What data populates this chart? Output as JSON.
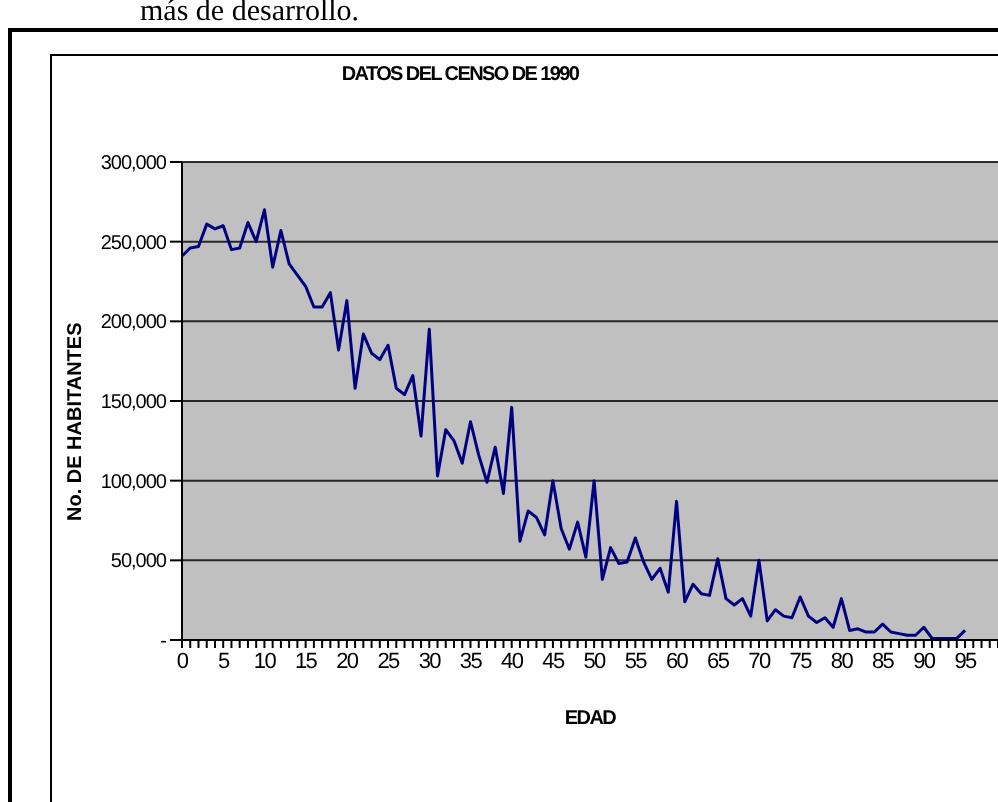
{
  "chart_data": {
    "type": "line",
    "title": "DATOS DEL CENSO DE 1990",
    "xlabel": "EDAD",
    "ylabel": "No. DE HABITANTES",
    "annotations": [
      "más de desarrollo."
    ],
    "categories": [
      "0",
      null,
      null,
      null,
      null,
      "5",
      null,
      null,
      null,
      null,
      "10",
      null,
      null,
      null,
      null,
      "15",
      null,
      null,
      null,
      null,
      "20",
      null,
      null,
      null,
      null,
      "25",
      null,
      null,
      null,
      null,
      "30",
      null,
      null,
      null,
      null,
      "35",
      null,
      null,
      null,
      null,
      "40",
      null,
      null,
      null,
      null,
      "45",
      null,
      null,
      null,
      null,
      "50",
      null,
      null,
      null,
      null,
      "55",
      null,
      null,
      null,
      null,
      "60",
      null,
      null,
      null,
      null,
      "65",
      null,
      null,
      null,
      null,
      "70",
      null,
      null,
      null,
      null,
      "75",
      null,
      null,
      null,
      null,
      "80",
      null,
      null,
      null,
      null,
      "85",
      null,
      null,
      null,
      null,
      "90",
      null,
      null,
      null,
      null,
      "95",
      null,
      null,
      null,
      null
    ],
    "series": [
      {
        "color": "#000080",
        "values": [
          241000,
          246000,
          247000,
          261000,
          258000,
          260000,
          245000,
          246000,
          262000,
          250000,
          270000,
          234000,
          257000,
          236000,
          229000,
          222000,
          209000,
          209000,
          218000,
          182000,
          213000,
          158000,
          192000,
          180000,
          176000,
          185000,
          158000,
          154000,
          166000,
          128000,
          195000,
          103000,
          132000,
          125000,
          111000,
          137000,
          116000,
          99000,
          121000,
          92000,
          146000,
          62000,
          81000,
          77000,
          66000,
          100000,
          70000,
          57000,
          74000,
          52000,
          100000,
          38000,
          58000,
          48000,
          49000,
          64000,
          49000,
          38000,
          45000,
          30000,
          87000,
          24000,
          35000,
          29000,
          28000,
          51000,
          26000,
          22000,
          26000,
          15000,
          50000,
          12000,
          19000,
          15000,
          14000,
          27000,
          15000,
          11000,
          14000,
          8000,
          26000,
          6000,
          7000,
          5000,
          5000,
          10000,
          5000,
          4000,
          3000,
          3000,
          8000,
          1000,
          1000,
          1000,
          1000,
          6000,
          null,
          null,
          null,
          null
        ]
      }
    ],
    "ylim": [
      0,
      300000
    ],
    "yticks": [
      {
        "value": 0,
        "label": "-"
      },
      {
        "value": 50000,
        "label": "50,000"
      },
      {
        "value": 100000,
        "label": "100,000"
      },
      {
        "value": 150000,
        "label": "150,000"
      },
      {
        "value": 200000,
        "label": "200,000"
      },
      {
        "value": 250000,
        "label": "250,000"
      },
      {
        "value": 300000,
        "label": "300,000"
      }
    ],
    "grid": "y",
    "legend": false,
    "marker": "none",
    "line_style": "solid"
  }
}
